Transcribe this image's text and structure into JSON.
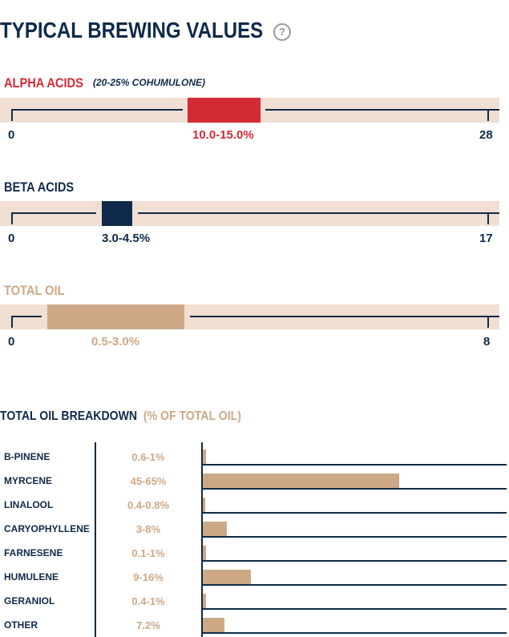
{
  "header": {
    "title": "TYPICAL BREWING VALUES",
    "help_icon": "?"
  },
  "colors": {
    "navy": "#0f2a4a",
    "red": "#d42a35",
    "tan": "#cda886",
    "track": "#f0dfd2"
  },
  "alpha": {
    "label": "ALPHA ACIDS",
    "note": "(20-25% COHUMULONE)",
    "min": "0",
    "max": "28",
    "range": "10.0-15.0%"
  },
  "beta": {
    "label": "BETA ACIDS",
    "min": "0",
    "max": "17",
    "range": "3.0-4.5%"
  },
  "oil": {
    "label": "TOTAL OIL",
    "min": "0",
    "max": "8",
    "range": "0.5-3.0%"
  },
  "breakdown": {
    "title": "TOTAL OIL BREAKDOWN",
    "subtitle": "(% OF TOTAL OIL)",
    "rows": [
      {
        "name": "B-PINENE",
        "value": "0.6-1%"
      },
      {
        "name": "MYRCENE",
        "value": "45-65%"
      },
      {
        "name": "LINALOOL",
        "value": "0.4-0.8%"
      },
      {
        "name": "CARYOPHYLLENE",
        "value": "3-8%"
      },
      {
        "name": "FARNESENE",
        "value": "0.1-1%"
      },
      {
        "name": "HUMULENE",
        "value": "9-16%"
      },
      {
        "name": "GERANIOL",
        "value": "0.4-1%"
      },
      {
        "name": "OTHER",
        "value": "7.2%"
      }
    ]
  }
}
